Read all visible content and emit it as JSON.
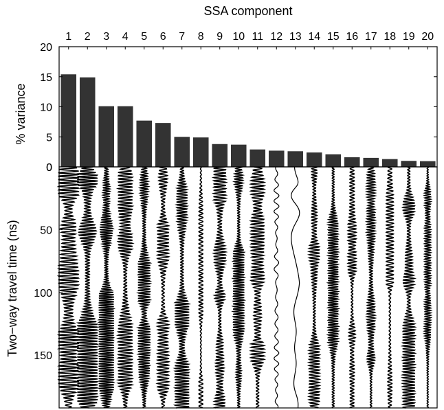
{
  "chart_data": [
    {
      "type": "bar",
      "xlabel": "SSA component",
      "ylabel": "% variance",
      "categories": [
        "1",
        "2",
        "3",
        "4",
        "5",
        "6",
        "7",
        "8",
        "9",
        "10",
        "11",
        "12",
        "13",
        "14",
        "15",
        "16",
        "17",
        "18",
        "19",
        "20"
      ],
      "values": [
        15.4,
        14.9,
        10.1,
        10.1,
        7.7,
        7.3,
        5.0,
        4.9,
        3.8,
        3.7,
        2.9,
        2.7,
        2.6,
        2.4,
        2.1,
        1.6,
        1.5,
        1.3,
        1.0,
        0.95
      ],
      "ylim": [
        0,
        20
      ],
      "yticks": [
        "0",
        "5",
        "10",
        "15",
        "20"
      ],
      "bar_color": "#333333"
    },
    {
      "type": "wiggle",
      "ylabel": "Two−way travel time (ns)",
      "ylim": [
        0,
        192
      ],
      "yticks": [
        "0",
        "50",
        "100",
        "150"
      ],
      "yticks_values": [
        0,
        50,
        100,
        150
      ],
      "traces": [
        "1",
        "2",
        "3",
        "4",
        "5",
        "6",
        "7",
        "8",
        "9",
        "10",
        "11",
        "12",
        "13",
        "14",
        "15",
        "16",
        "17",
        "18",
        "19",
        "20"
      ],
      "relative_amplitude": [
        1.0,
        1.0,
        0.75,
        0.7,
        0.6,
        0.55,
        0.7,
        0.2,
        0.6,
        0.55,
        0.65,
        0.3,
        0.5,
        0.5,
        0.5,
        0.4,
        0.4,
        0.35,
        0.6,
        0.3
      ],
      "trace_color": "#000000"
    }
  ]
}
